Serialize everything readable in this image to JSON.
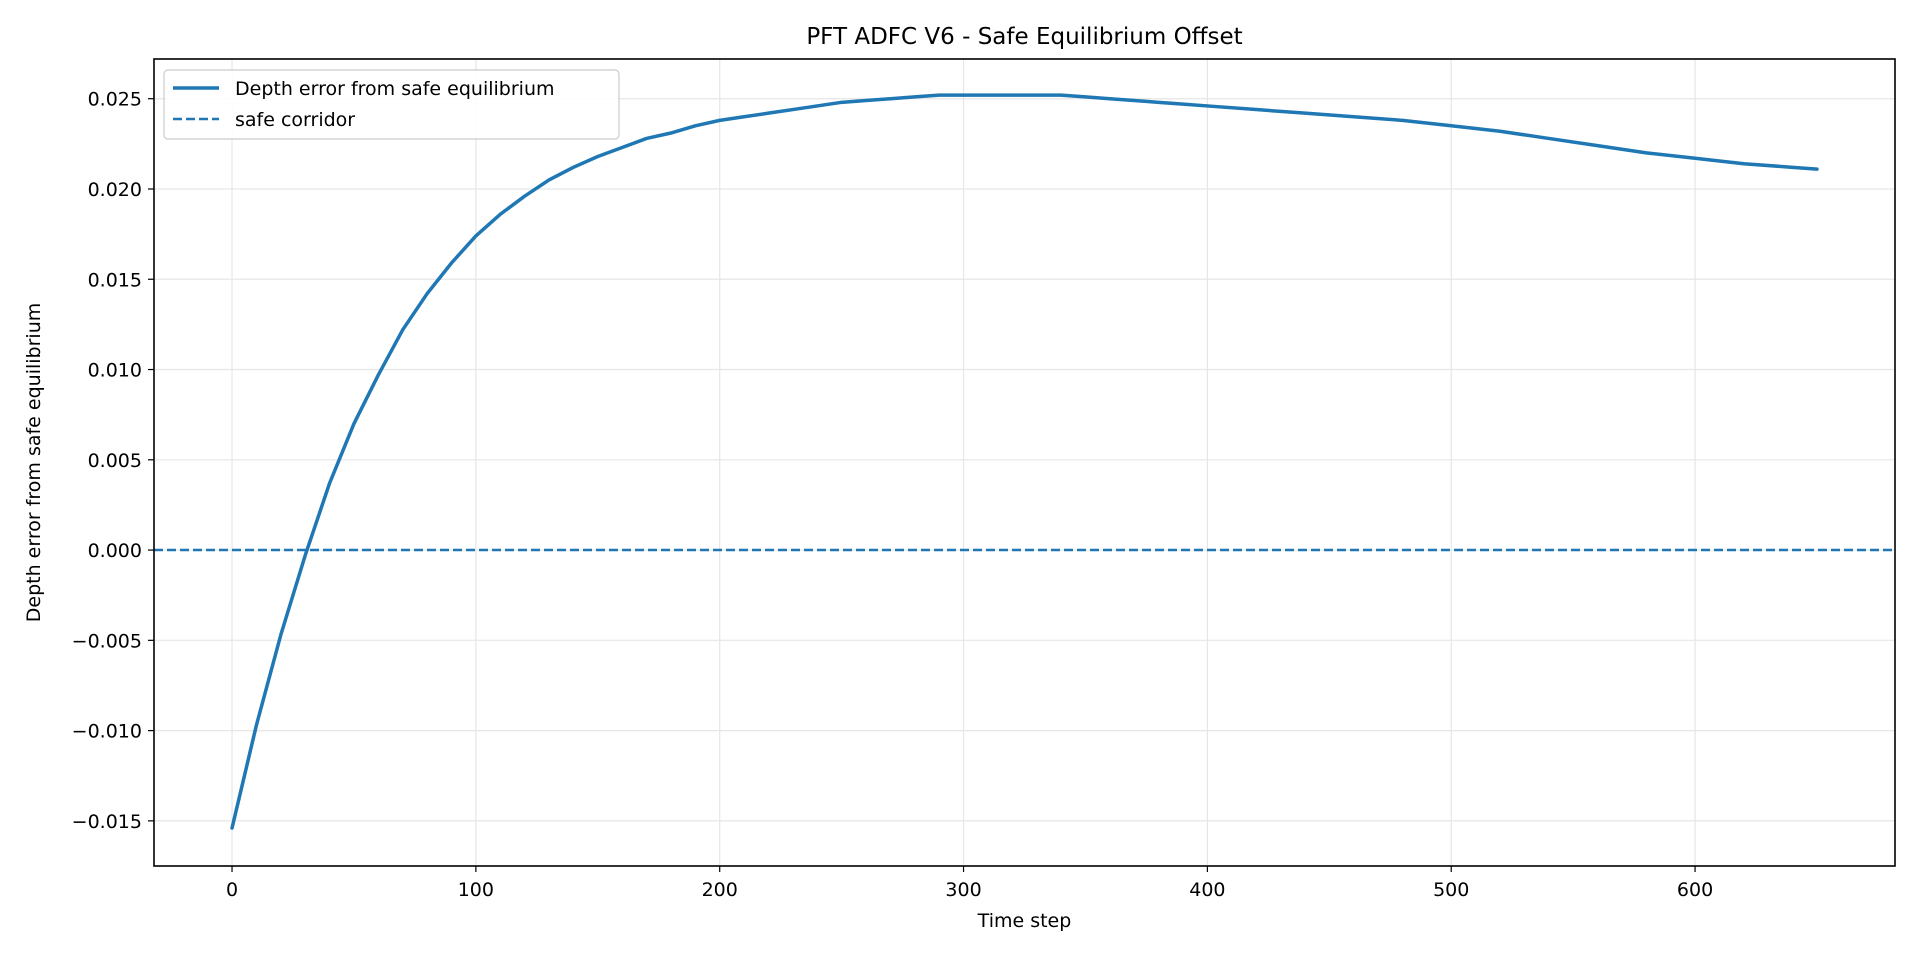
{
  "chart_data": {
    "type": "line",
    "title": "PFT ADFC V6 - Safe Equilibrium Offset",
    "xlabel": "Time step",
    "ylabel": "Depth error from safe equilibrium",
    "xlim": [
      -32,
      682
    ],
    "ylim": [
      -0.0175,
      0.0272
    ],
    "xticks": [
      0,
      100,
      200,
      300,
      400,
      500,
      600
    ],
    "yticks": [
      -0.015,
      -0.01,
      -0.005,
      0.0,
      0.005,
      0.01,
      0.015,
      0.02,
      0.025
    ],
    "ytick_labels": [
      "−0.015",
      "−0.010",
      "−0.005",
      "0.000",
      "0.005",
      "0.010",
      "0.015",
      "0.020",
      "0.025"
    ],
    "grid": true,
    "legend_position": "top-left",
    "series": [
      {
        "name": "Depth error from safe equilibrium",
        "style": "solid",
        "color": "#1f77b4",
        "x": [
          0,
          10,
          20,
          30,
          40,
          50,
          60,
          70,
          80,
          90,
          100,
          110,
          120,
          130,
          140,
          150,
          160,
          170,
          180,
          190,
          200,
          210,
          220,
          230,
          240,
          250,
          260,
          270,
          280,
          290,
          300,
          310,
          320,
          330,
          340,
          350,
          360,
          370,
          380,
          390,
          400,
          420,
          440,
          460,
          480,
          500,
          520,
          540,
          560,
          580,
          600,
          620,
          640,
          650
        ],
        "y": [
          -0.0154,
          -0.0097,
          -0.0047,
          -0.0003,
          0.0037,
          0.007,
          0.0097,
          0.0122,
          0.0142,
          0.0159,
          0.0174,
          0.0186,
          0.0196,
          0.0205,
          0.0212,
          0.0218,
          0.0223,
          0.0228,
          0.0231,
          0.0235,
          0.0238,
          0.024,
          0.0242,
          0.0244,
          0.0246,
          0.0248,
          0.0249,
          0.025,
          0.0251,
          0.0252,
          0.0252,
          0.0252,
          0.0252,
          0.0252,
          0.0252,
          0.0251,
          0.025,
          0.0249,
          0.0248,
          0.0247,
          0.0246,
          0.0244,
          0.0242,
          0.024,
          0.0238,
          0.0235,
          0.0232,
          0.0228,
          0.0224,
          0.022,
          0.0217,
          0.0214,
          0.0212,
          0.0211
        ]
      },
      {
        "name": "safe corridor",
        "style": "dashed",
        "color": "#1f77b4",
        "y_constant": 0.0
      }
    ]
  }
}
